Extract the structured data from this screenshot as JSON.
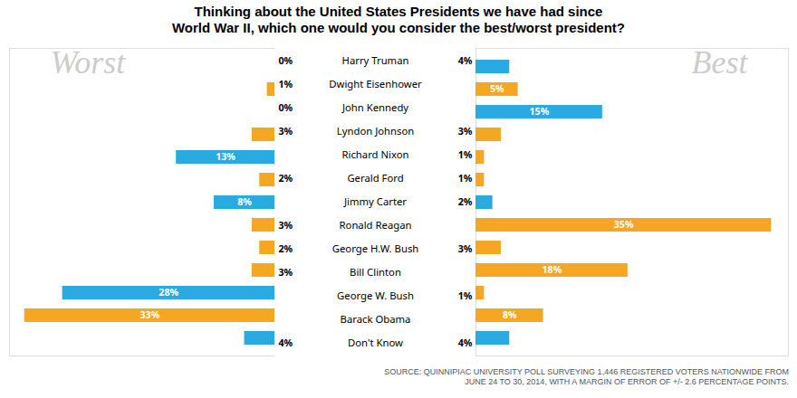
{
  "chart_data": {
    "type": "bar",
    "orientation": "horizontal",
    "title": "Thinking about the United States Presidents we have had since\nWorld War II, which one would you consider the best/worst president?",
    "source": "SOURCE: QUINNIPIAC UNIVERSITY POLL SURVEYING 1,446 REGISTERED VOTERS NATIONWIDE FROM\nJUNE 24 TO 30, 2014, WITH A MARGIN OF ERROR OF +/- 2.6 PERCENTAGE POINTS.",
    "categories": [
      "Harry Truman",
      "Dwight Eisenhower",
      "John Kennedy",
      "Lyndon Johnson",
      "Richard Nixon",
      "Gerald Ford",
      "Jimmy Carter",
      "Ronald Reagan",
      "George H.W. Bush",
      "Bill Clinton",
      "George W. Bush",
      "Barack Obama",
      "Don't Know"
    ],
    "tick_labels": "y",
    "data_labels": true,
    "series": [
      {
        "name": "Worst",
        "values": [
          0,
          1,
          0,
          3,
          13,
          2,
          8,
          3,
          2,
          3,
          28,
          33,
          4
        ],
        "value_labels": [
          "0%",
          "1%",
          "0%",
          "3%",
          "13%",
          "2%",
          "8%",
          "3%",
          "2%",
          "3%",
          "28%",
          "33%",
          "4%"
        ],
        "colors": [
          "#29abe2",
          "#f5a623",
          "#29abe2",
          "#f5a623",
          "#29abe2",
          "#f5a623",
          "#29abe2",
          "#f5a623",
          "#f5a623",
          "#f5a623",
          "#29abe2",
          "#f5a623",
          "#29abe2"
        ],
        "xlim": [
          35,
          0
        ]
      },
      {
        "name": "Best",
        "values": [
          4,
          5,
          15,
          3,
          1,
          1,
          2,
          35,
          3,
          18,
          1,
          8,
          4
        ],
        "value_labels": [
          "4%",
          "5%",
          "15%",
          "3%",
          "1%",
          "1%",
          "2%",
          "35%",
          "3%",
          "18%",
          "1%",
          "8%",
          "4%"
        ],
        "colors": [
          "#29abe2",
          "#f5a623",
          "#29abe2",
          "#f5a623",
          "#f5a623",
          "#f5a623",
          "#29abe2",
          "#f5a623",
          "#f5a623",
          "#f5a623",
          "#f5a623",
          "#f5a623",
          "#29abe2"
        ],
        "xlim": [
          0,
          37
        ]
      }
    ]
  }
}
